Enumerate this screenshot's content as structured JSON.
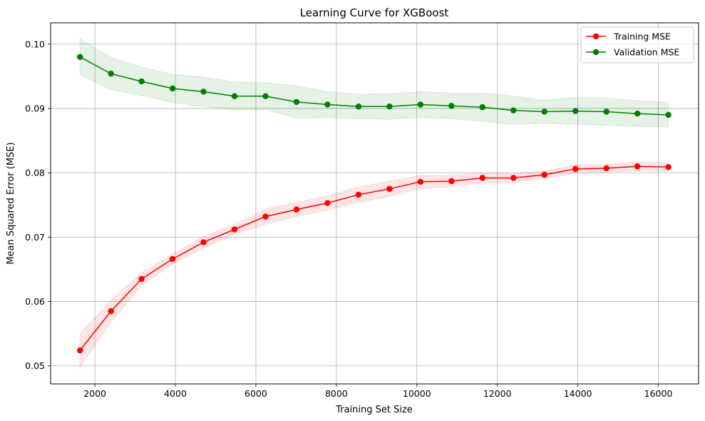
{
  "chart_data": {
    "type": "line",
    "title": "Learning Curve for XGBoost",
    "xlabel": "Training Set Size",
    "ylabel": "Mean Squared Error (MSE)",
    "xlim": [
      900,
      17000
    ],
    "ylim": [
      0.0472,
      0.1033
    ],
    "xticks": [
      2000,
      4000,
      6000,
      8000,
      10000,
      12000,
      14000,
      16000
    ],
    "xtick_labels": [
      "2000",
      "4000",
      "6000",
      "8000",
      "10000",
      "12000",
      "14000",
      "16000"
    ],
    "yticks": [
      0.05,
      0.06,
      0.07,
      0.08,
      0.09,
      0.1
    ],
    "ytick_labels": [
      "0.05",
      "0.06",
      "0.07",
      "0.08",
      "0.09",
      "0.10"
    ],
    "grid": true,
    "legend_position": "top-right",
    "x": [
      1630,
      2400,
      3160,
      3930,
      4700,
      5470,
      6240,
      7010,
      7780,
      8550,
      9320,
      10090,
      10860,
      11630,
      12400,
      13170,
      13940,
      14710,
      15480,
      16250
    ],
    "series": [
      {
        "name": "Training MSE",
        "color": "#ff0000",
        "band_color": "#ff0000",
        "values": [
          0.0524,
          0.0585,
          0.0635,
          0.0666,
          0.0692,
          0.0712,
          0.0732,
          0.0743,
          0.0753,
          0.0766,
          0.0775,
          0.0786,
          0.0787,
          0.0792,
          0.0792,
          0.0797,
          0.0806,
          0.0807,
          0.081,
          0.0809
        ],
        "lower": [
          0.0498,
          0.0568,
          0.0625,
          0.0658,
          0.0683,
          0.0704,
          0.072,
          0.0732,
          0.0742,
          0.0754,
          0.0763,
          0.0776,
          0.0778,
          0.0784,
          0.0785,
          0.0791,
          0.08,
          0.0801,
          0.0803,
          0.0802
        ],
        "upper": [
          0.055,
          0.0602,
          0.0645,
          0.0674,
          0.0701,
          0.072,
          0.0744,
          0.0754,
          0.0764,
          0.0778,
          0.0787,
          0.0796,
          0.0796,
          0.08,
          0.0799,
          0.0803,
          0.0812,
          0.0813,
          0.0817,
          0.0816
        ]
      },
      {
        "name": "Validation MSE",
        "color": "#008000",
        "band_color": "#008000",
        "values": [
          0.098,
          0.0954,
          0.0942,
          0.0931,
          0.0926,
          0.0919,
          0.0919,
          0.091,
          0.0906,
          0.0903,
          0.0903,
          0.0906,
          0.0904,
          0.0902,
          0.0897,
          0.0895,
          0.0896,
          0.0895,
          0.0892,
          0.089
        ],
        "lower": [
          0.0952,
          0.0929,
          0.092,
          0.0909,
          0.0903,
          0.0897,
          0.0898,
          0.0885,
          0.0886,
          0.0884,
          0.0883,
          0.0886,
          0.0884,
          0.088,
          0.0875,
          0.0877,
          0.0875,
          0.0874,
          0.0872,
          0.0871
        ],
        "upper": [
          0.1008,
          0.0979,
          0.0964,
          0.0953,
          0.0949,
          0.0941,
          0.094,
          0.0935,
          0.0926,
          0.0922,
          0.0923,
          0.0926,
          0.0924,
          0.0924,
          0.0919,
          0.0913,
          0.0917,
          0.0916,
          0.0912,
          0.0909
        ]
      }
    ]
  }
}
